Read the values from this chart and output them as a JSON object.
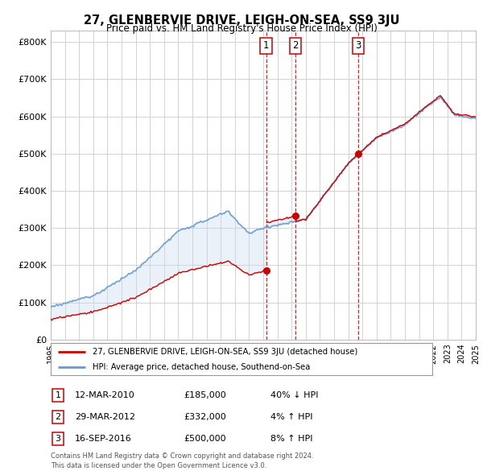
{
  "title": "27, GLENBERVIE DRIVE, LEIGH-ON-SEA, SS9 3JU",
  "subtitle": "Price paid vs. HM Land Registry's House Price Index (HPI)",
  "background_color": "#ffffff",
  "plot_bg_color": "#ffffff",
  "grid_color": "#cccccc",
  "hpi_color": "#6699cc",
  "hpi_fill_color": "#c8d8ee",
  "price_color": "#cc0000",
  "ylim": [
    0,
    830000
  ],
  "yticks": [
    0,
    100000,
    200000,
    300000,
    400000,
    500000,
    600000,
    700000,
    800000
  ],
  "ytick_labels": [
    "£0",
    "£100K",
    "£200K",
    "£300K",
    "£400K",
    "£500K",
    "£600K",
    "£700K",
    "£800K"
  ],
  "x_start_year": 1995,
  "x_end_year": 2025,
  "sales": [
    {
      "year": 2010.2,
      "price": 185000,
      "label": "1",
      "date": "12-MAR-2010",
      "hpi_pct": "40% ↓ HPI"
    },
    {
      "year": 2012.25,
      "price": 332000,
      "label": "2",
      "date": "29-MAR-2012",
      "hpi_pct": "4% ↑ HPI"
    },
    {
      "year": 2016.72,
      "price": 500000,
      "label": "3",
      "date": "16-SEP-2016",
      "hpi_pct": "8% ↑ HPI"
    }
  ],
  "legend_line1": "27, GLENBERVIE DRIVE, LEIGH-ON-SEA, SS9 3JU (detached house)",
  "legend_line2": "HPI: Average price, detached house, Southend-on-Sea",
  "footer1": "Contains HM Land Registry data © Crown copyright and database right 2024.",
  "footer2": "This data is licensed under the Open Government Licence v3.0."
}
